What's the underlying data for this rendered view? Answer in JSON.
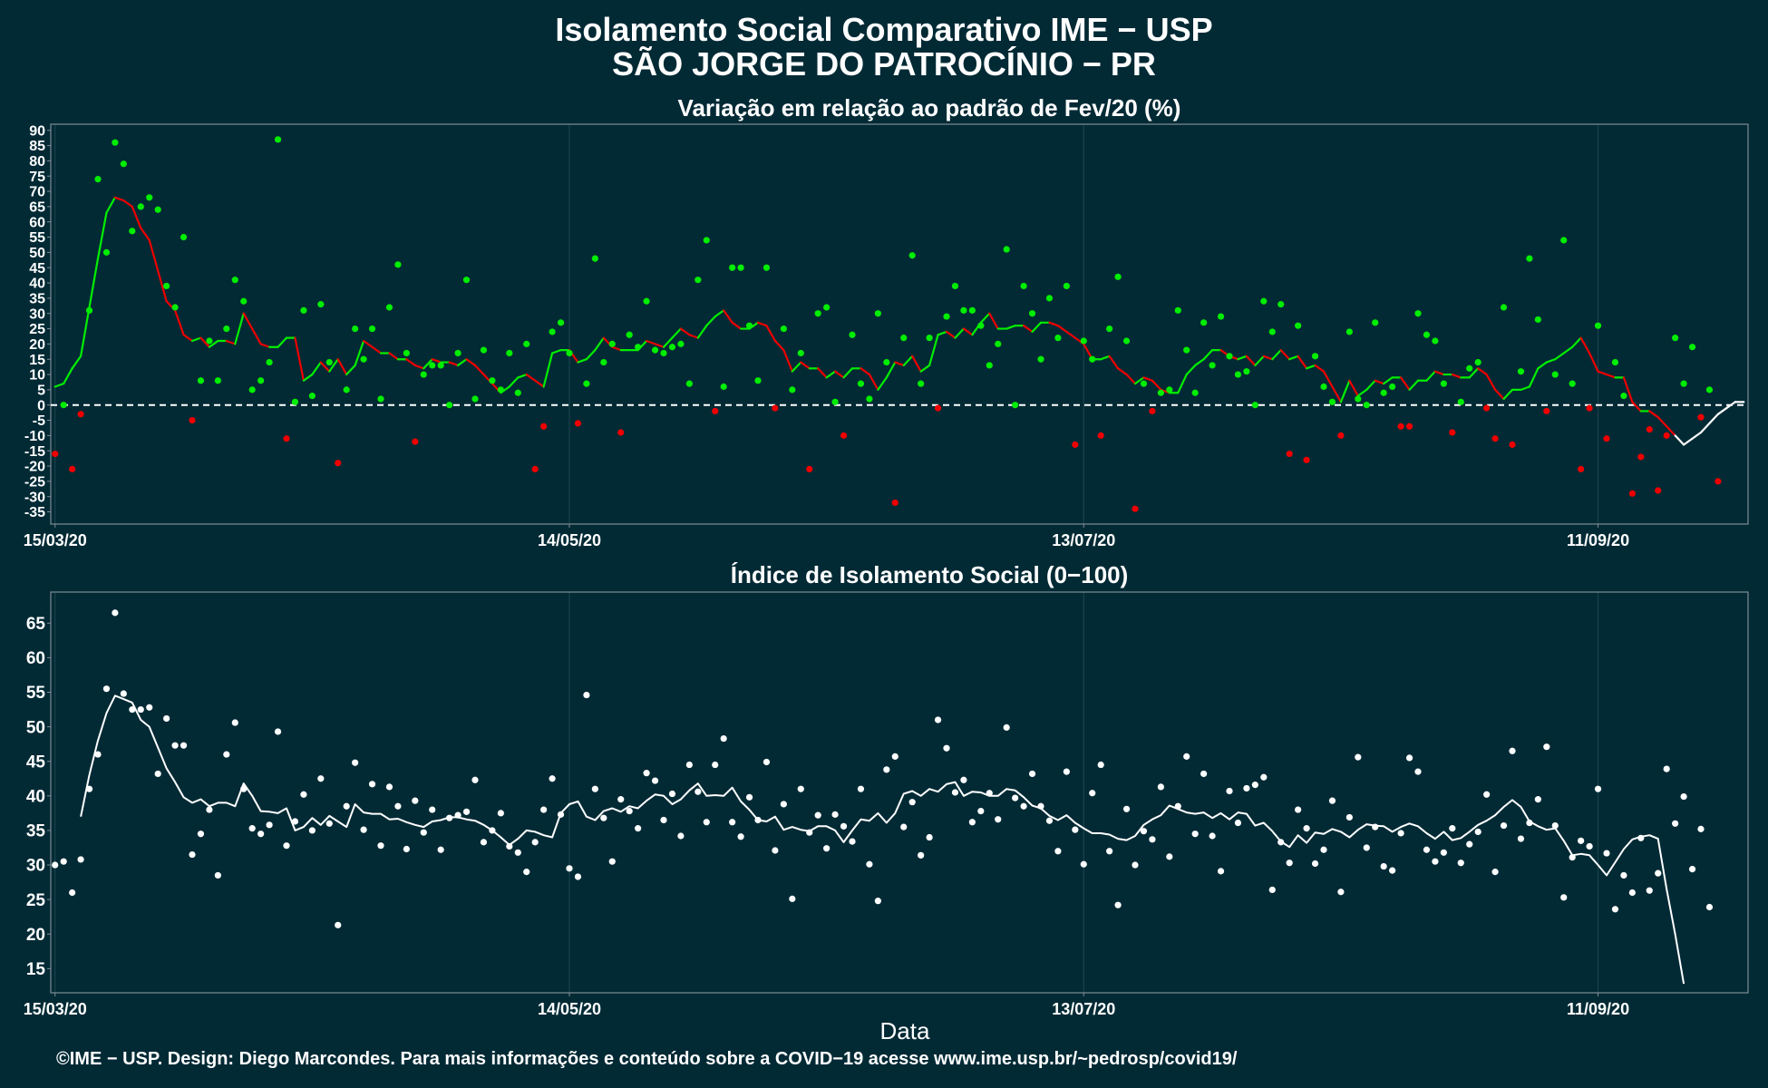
{
  "title": "Isolamento Social Comparativo IME − USP",
  "subtitle": "SÃO JORGE DO PATROCÍNIO − PR",
  "xlabel": "Data",
  "footer": "©IME − USP. Design: Diego Marcondes. Para mais informações e conteúdo sobre a COVID−19 acesse www.ime.usp.br/~pedrosp/covid19/",
  "colors": {
    "background": "#022a35",
    "positive": "#00ee00",
    "negative": "#ee0000",
    "recent": "#ffffff",
    "grid": "#1e4650",
    "frame": "#7d8d93"
  },
  "chart_data": [
    {
      "type": "scatter",
      "title": "Variação em relação ao padrão de Fev/20 (%)",
      "x_ticks": [
        {
          "day": 0,
          "label": "15/03/20"
        },
        {
          "day": 60,
          "label": "14/05/20"
        },
        {
          "day": 120,
          "label": "13/07/20"
        },
        {
          "day": 180,
          "label": "11/09/20"
        }
      ],
      "xlim": [
        -0.5,
        197.5
      ],
      "ylim": [
        -39,
        92
      ],
      "y_ticks": [
        -35,
        -30,
        -25,
        -20,
        -15,
        -10,
        -5,
        0,
        5,
        10,
        15,
        20,
        25,
        30,
        35,
        40,
        45,
        50,
        55,
        60,
        65,
        70,
        75,
        80,
        85,
        90
      ],
      "reference_line": 0,
      "series": [
        {
          "kind": "points",
          "x_start": 0,
          "values": [
            -16,
            0,
            -21,
            -3,
            31,
            74,
            50,
            86,
            79,
            57,
            65,
            68,
            64,
            39,
            32,
            55,
            -5,
            8,
            21,
            8,
            25,
            41,
            34,
            5,
            8,
            14,
            87,
            -11,
            1,
            31,
            3,
            33,
            14,
            -19,
            5,
            25,
            15,
            25,
            2,
            32,
            46,
            17,
            -12,
            10,
            13,
            13,
            0,
            17,
            41,
            2,
            18,
            8,
            5,
            17,
            4,
            20,
            -21,
            -7,
            24,
            27,
            17,
            -6,
            7,
            48,
            14,
            20,
            -9,
            23,
            19,
            34,
            18,
            17,
            19,
            20,
            7,
            41,
            54,
            -2,
            6,
            45,
            45,
            26,
            8,
            45,
            -1,
            25,
            5,
            17,
            -21,
            30,
            32,
            1,
            -10,
            23,
            7,
            2,
            30,
            14,
            -32,
            22,
            49,
            7,
            22,
            -1,
            29,
            39,
            31,
            31,
            26,
            13,
            20,
            51,
            0,
            39,
            30,
            15,
            35,
            22,
            39,
            -13,
            21,
            15,
            -10,
            25,
            42,
            21,
            -34,
            7,
            -2,
            4,
            5,
            31,
            18,
            4,
            27,
            13,
            29,
            16,
            10,
            11,
            0,
            34,
            24,
            33,
            -16,
            26,
            -18,
            16,
            6,
            1,
            -10,
            24,
            2,
            0,
            27,
            4,
            6,
            -7,
            -7,
            30,
            23,
            21,
            7,
            -9,
            1,
            12,
            14,
            -1,
            -11,
            32,
            -13,
            11,
            48,
            28,
            -2,
            10,
            54,
            7,
            -21,
            -1,
            26,
            -11,
            14,
            3,
            -29,
            -17,
            -8,
            -28,
            -10,
            22,
            7,
            19,
            -4,
            5,
            -25
          ]
        },
        {
          "kind": "moving_average",
          "x_start": 0,
          "values": [
            6,
            7,
            12,
            16,
            32,
            48,
            63,
            68,
            67,
            65,
            58,
            54,
            44,
            34,
            31,
            23,
            21,
            22,
            19,
            21,
            21,
            20,
            30,
            25,
            20,
            19,
            19,
            22,
            22,
            8,
            10,
            14,
            11,
            15,
            10,
            13,
            21,
            19,
            17,
            17,
            15,
            15,
            13,
            12,
            15,
            14,
            14,
            13,
            15,
            13,
            10,
            7,
            4,
            6,
            9,
            10,
            8,
            6,
            17,
            18,
            18,
            14,
            15,
            18,
            22,
            19,
            18,
            18,
            18,
            21,
            20,
            19,
            22,
            25,
            23,
            22,
            26,
            29,
            31,
            27,
            25,
            25,
            27,
            26,
            21,
            18,
            11,
            14,
            12,
            12,
            9,
            11,
            9,
            12,
            12,
            10,
            5,
            9,
            14,
            13,
            16,
            11,
            13,
            23,
            24,
            22,
            25,
            23,
            27,
            30,
            25,
            25,
            26,
            26,
            24,
            27,
            27,
            26,
            24,
            22,
            20,
            15,
            15,
            16,
            12,
            10,
            7,
            9,
            8,
            5,
            4,
            4,
            10,
            13,
            15,
            18,
            18,
            16,
            15,
            16,
            13,
            16,
            15,
            18,
            15,
            16,
            12,
            13,
            11,
            6,
            1,
            8,
            3,
            5,
            8,
            7,
            9,
            9,
            5,
            8,
            8,
            11,
            10,
            10,
            9,
            9,
            12,
            10,
            5,
            2,
            5,
            5,
            6,
            12,
            14,
            15,
            17,
            19,
            22,
            17,
            11,
            10,
            9,
            9,
            1,
            -2,
            -2,
            -4,
            -7,
            -10,
            -13,
            -11,
            -9,
            -6,
            -3,
            -1,
            1,
            1
          ]
        }
      ],
      "segment_colors": "green where the average rises, red where it falls; the final days (from day 189) are drawn in white"
    },
    {
      "type": "scatter",
      "title": "Índice de Isolamento Social (0−100)",
      "x_ticks": [
        {
          "day": 0,
          "label": "15/03/20"
        },
        {
          "day": 60,
          "label": "14/05/20"
        },
        {
          "day": 120,
          "label": "13/07/20"
        },
        {
          "day": 180,
          "label": "11/09/20"
        }
      ],
      "xlim": [
        -0.5,
        197.5
      ],
      "ylim": [
        11.5,
        69.5
      ],
      "y_ticks": [
        15,
        20,
        25,
        30,
        35,
        40,
        45,
        50,
        55,
        60,
        65
      ],
      "series": [
        {
          "kind": "points",
          "x_start": 0,
          "values": [
            30,
            30.5,
            26,
            30.8,
            41,
            46,
            55.5,
            66.5,
            54.8,
            52.5,
            52.5,
            52.8,
            43.2,
            51.2,
            47.3,
            47.3,
            31.5,
            34.5,
            38,
            28.5,
            46,
            50.6,
            41,
            35.3,
            34.5,
            35.8,
            49.3,
            32.8,
            36.3,
            40.2,
            35,
            42.5,
            36,
            21.3,
            38.5,
            44.8,
            35.1,
            41.7,
            32.8,
            41.3,
            38.5,
            32.3,
            39.3,
            34.7,
            38,
            32.2,
            36.8,
            37.2,
            37.7,
            42.3,
            33.3,
            35,
            37.5,
            32.7,
            31.8,
            29,
            33.3,
            38,
            42.5,
            37.3,
            29.5,
            28.3,
            54.6,
            41,
            36.8,
            30.5,
            39.5,
            37.8,
            35.3,
            43.3,
            42.2,
            36.5,
            40.3,
            34.2,
            44.5,
            40.6,
            36.2,
            44.5,
            48.3,
            36.2,
            34.1,
            39.8,
            36.5,
            44.9,
            32.1,
            38.8,
            25.1,
            41,
            34.7,
            37.2,
            32.4,
            37.3,
            35.6,
            33.4,
            41,
            30.1,
            24.8,
            43.8,
            45.7,
            35.5,
            39.1,
            31.4,
            34,
            51,
            46.9,
            40.5,
            42.3,
            36.2,
            37.8,
            40.4,
            36.6,
            49.9,
            39.7,
            38.5,
            43.2,
            38.5,
            36.4,
            32,
            43.5,
            35.1,
            30.1,
            40.4,
            44.5,
            32,
            24.2,
            38.1,
            30,
            34.9,
            33.7,
            41.3,
            31.2,
            38.5,
            45.7,
            34.5,
            43.2,
            34.2,
            29.1,
            40.7,
            36.1,
            41.1,
            41.6,
            42.7,
            26.4,
            33.3,
            30.3,
            38,
            35.3,
            30.2,
            32.2,
            39.3,
            26.1,
            36.9,
            45.6,
            32.5,
            35.5,
            29.8,
            29.2,
            34.6,
            45.5,
            43.5,
            32.2,
            30.5,
            31.8,
            35.3,
            30.3,
            33,
            34.8,
            40.2,
            29,
            35.7,
            46.5,
            33.8,
            36.1,
            39.5,
            47.1,
            35.7,
            25.3,
            31.1,
            33.5,
            32.7,
            41,
            31.7,
            23.6,
            28.5,
            26,
            33.9,
            26.3,
            28.8,
            43.9,
            36,
            39.9,
            29.4,
            35.2,
            23.9
          ]
        },
        {
          "kind": "moving_average",
          "x_start": 3,
          "values": [
            37,
            43,
            48,
            52,
            54.5,
            54,
            53.5,
            51,
            50,
            47,
            44,
            42,
            39.8,
            39,
            39.5,
            38.5,
            39,
            39,
            38.5,
            41.8,
            40,
            37.8,
            37.7,
            37.5,
            38.2,
            35,
            35.5,
            36.8,
            35.8,
            37.1,
            36.3,
            35.5,
            38.8,
            37.6,
            37.4,
            37.4,
            36.6,
            36.7,
            36.2,
            35.8,
            35.5,
            36.3,
            36.5,
            36.9,
            36.9,
            36.6,
            36.4,
            35.8,
            35,
            34,
            32.9,
            33.8,
            35,
            34.8,
            34.3,
            34,
            37.5,
            38.8,
            39.2,
            37,
            36.5,
            37.8,
            38.2,
            37.7,
            38.5,
            38.2,
            39.3,
            40.2,
            40,
            38.8,
            39.5,
            40.8,
            41.8,
            40,
            40.1,
            40,
            41.2,
            39.2,
            38,
            36.5,
            36.3,
            37,
            35.1,
            35.5,
            35.1,
            34.9,
            35.6,
            35.6,
            35,
            33.3,
            35,
            36.6,
            36.4,
            37.5,
            36.1,
            37.5,
            40.3,
            40.7,
            40,
            41,
            40.6,
            41.7,
            42,
            40,
            40.6,
            40.5,
            40,
            40,
            41,
            40.8,
            39.8,
            38.6,
            38.2,
            37.1,
            36.5,
            37.2,
            36.1,
            35.3,
            34.6,
            34.6,
            34.4,
            33.8,
            33.6,
            34.2,
            35.8,
            36.6,
            37.2,
            38.6,
            38.1,
            37.6,
            37.4,
            37.6,
            36.8,
            37.5,
            36.6,
            37.6,
            37.4,
            35.7,
            36.1,
            34.9,
            33.4,
            32.6,
            34.3,
            33.2,
            34.7,
            34.5,
            35.2,
            34.8,
            34,
            35.1,
            35.9,
            35.7,
            35.6,
            34.8,
            35.5,
            36,
            35.6,
            34.6,
            33.8,
            34.8,
            33.6,
            33.9,
            34.8,
            35.8,
            36.4,
            37.2,
            38.4,
            39.4,
            38.4,
            36.3,
            35.6,
            35.1,
            35.3,
            33.5,
            31.4,
            31.6,
            31.4,
            30,
            28.5,
            30.4,
            32.3,
            33.7,
            34.1,
            34.3,
            33.8,
            26.5,
            20,
            12.8
          ]
        }
      ]
    }
  ]
}
